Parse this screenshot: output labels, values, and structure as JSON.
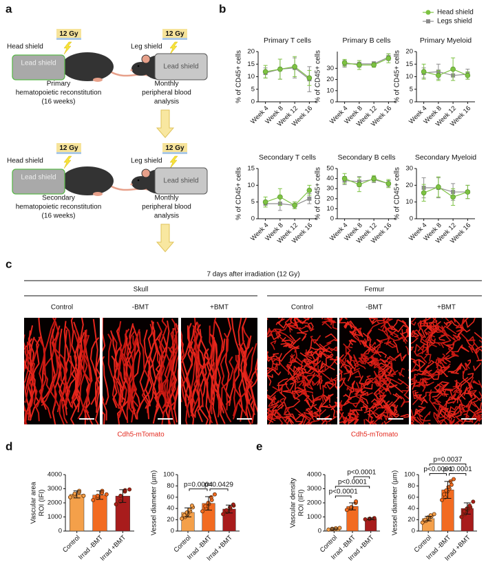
{
  "panel_labels": [
    "a",
    "b",
    "c",
    "d",
    "e"
  ],
  "panel_a": {
    "rows": [
      {
        "dose": "12 Gy",
        "shield": "Head shield",
        "lead": "Lead shield",
        "caption": [
          "Primary",
          "hematopoietic reconstitution",
          "(16 weeks)"
        ],
        "right_dose": "12 Gy",
        "right_shield": "Leg shield",
        "right_lead": "Lead shield",
        "right_caption": [
          "Monthly",
          "peripheral blood",
          "analysis"
        ]
      },
      {
        "dose": "12 Gy",
        "shield": "Head shield",
        "lead": "Lead shield",
        "caption": [
          "Secondary",
          "hematopoietic reconstitution",
          "(16 weeks)"
        ],
        "right_dose": "12 Gy",
        "right_shield": "Leg shield",
        "right_lead": "Lead shield",
        "right_caption": [
          "Monthly",
          "peripheral blood",
          "analysis"
        ]
      }
    ]
  },
  "panel_c": {
    "title": "7 days after irradiation (12 Gy)",
    "groups": [
      {
        "name": "Skull",
        "conditions": [
          "Control",
          "-BMT",
          "+BMT"
        ]
      },
      {
        "name": "Femur",
        "conditions": [
          "Control",
          "-BMT",
          "+BMT"
        ]
      }
    ],
    "stain": [
      "Cdh5-mTomato",
      "Cdh5-mTomato"
    ]
  },
  "chart_data": [
    {
      "type": "line",
      "title": "Primary T cells",
      "ylabel": "% of CD45+ cells",
      "categories": [
        "Week 4",
        "Week 8",
        "Week 12",
        "Week 16"
      ],
      "series": [
        {
          "name": "Head shield",
          "color": "#7dc242",
          "marker": "circle",
          "values": [
            12,
            13,
            14,
            9.5
          ],
          "errors": [
            2.5,
            4,
            4,
            3
          ]
        },
        {
          "name": "Legs shield",
          "color": "#8c8c8c",
          "marker": "square",
          "values": [
            11.5,
            13,
            13.5,
            9
          ],
          "errors": [
            2,
            4,
            4,
            5
          ]
        }
      ],
      "ylim": [
        0,
        20
      ],
      "yticks": [
        0,
        5,
        10,
        15,
        20
      ]
    },
    {
      "type": "line",
      "title": "Primary B cells",
      "ylabel": "% of CD45+ cells",
      "categories": [
        "Week 4",
        "Week 8",
        "Week 12",
        "Week 16"
      ],
      "series": [
        {
          "name": "Head shield",
          "color": "#7dc242",
          "marker": "circle",
          "values": [
            35,
            33,
            33,
            39
          ],
          "errors": [
            3,
            4,
            2,
            4
          ]
        },
        {
          "name": "Legs shield",
          "color": "#8c8c8c",
          "marker": "square",
          "values": [
            34,
            34,
            34,
            40
          ],
          "errors": [
            3,
            3,
            2,
            3
          ]
        }
      ],
      "ylim": [
        0,
        45
      ],
      "yticks": [
        0,
        10,
        20,
        30
      ]
    },
    {
      "type": "line",
      "title": "Primary Myeloid",
      "ylabel": "% of CD45+ cells",
      "categories": [
        "Week 4",
        "Week 8",
        "Week 12",
        "Week 16"
      ],
      "series": [
        {
          "name": "Head shield",
          "color": "#7dc242",
          "marker": "circle",
          "values": [
            12,
            10.5,
            13,
            10.5
          ],
          "errors": [
            3,
            2,
            4.5,
            1.5
          ]
        },
        {
          "name": "Legs shield",
          "color": "#8c8c8c",
          "marker": "square",
          "values": [
            11.5,
            12,
            10.5,
            11
          ],
          "errors": [
            2,
            3,
            2,
            2
          ]
        }
      ],
      "ylim": [
        0,
        20
      ],
      "yticks": [
        0,
        5,
        10,
        15,
        20
      ],
      "legend": "top right"
    },
    {
      "type": "line",
      "title": "Secondary T cells",
      "ylabel": "% of CD45+ cells",
      "categories": [
        "Week 4",
        "Week 8",
        "Week 12",
        "Week 16"
      ],
      "series": [
        {
          "name": "Head shield",
          "color": "#7dc242",
          "marker": "circle",
          "values": [
            5,
            6.5,
            4,
            8.5
          ],
          "errors": [
            1.5,
            2.5,
            1,
            1.5
          ]
        },
        {
          "name": "Legs shield",
          "color": "#8c8c8c",
          "marker": "square",
          "values": [
            4.5,
            4.5,
            4,
            6
          ],
          "errors": [
            1,
            2,
            1,
            1.5
          ]
        }
      ],
      "ylim": [
        0,
        15
      ],
      "yticks": [
        0,
        5,
        10,
        15
      ]
    },
    {
      "type": "line",
      "title": "Secondary B cells",
      "ylabel": "% of CD45+ cells",
      "categories": [
        "Week 4",
        "Week 8",
        "Week 12",
        "Week 16"
      ],
      "series": [
        {
          "name": "Head shield",
          "color": "#7dc242",
          "marker": "circle",
          "values": [
            40,
            34,
            40,
            35
          ],
          "errors": [
            5,
            7,
            3,
            4
          ]
        },
        {
          "name": "Legs shield",
          "color": "#8c8c8c",
          "marker": "square",
          "values": [
            38,
            37,
            39,
            35
          ],
          "errors": [
            4,
            5,
            3,
            3
          ]
        }
      ],
      "ylim": [
        0,
        50
      ],
      "yticks": [
        0,
        10,
        20,
        30,
        40,
        50
      ]
    },
    {
      "type": "line",
      "title": "Secondary Myeloid",
      "ylabel": "% of CD45+ cells",
      "categories": [
        "Week 4",
        "Week 8",
        "Week 12",
        "Week 16"
      ],
      "series": [
        {
          "name": "Head shield",
          "color": "#7dc242",
          "marker": "circle",
          "values": [
            15.5,
            19,
            13,
            16
          ],
          "errors": [
            5,
            6,
            5,
            4
          ]
        },
        {
          "name": "Legs shield",
          "color": "#8c8c8c",
          "marker": "square",
          "values": [
            18.5,
            18.5,
            16,
            16
          ],
          "errors": [
            6,
            6,
            5,
            4
          ]
        }
      ],
      "ylim": [
        0,
        30
      ],
      "yticks": [
        0,
        10,
        20,
        30
      ]
    },
    {
      "type": "bar",
      "ylabel": [
        "Vascular area",
        "ROI (IFI)"
      ],
      "categories": [
        "Control",
        "Irrad -BMT",
        "Irrad +BMT"
      ],
      "colors": [
        "#f4a04a",
        "#f26b21",
        "#a81c1c"
      ],
      "values": [
        2600,
        2550,
        2480
      ],
      "errors": [
        250,
        300,
        450
      ],
      "points": [
        [
          2400,
          2550,
          2650,
          2750,
          2850,
          2500
        ],
        [
          2200,
          2350,
          2500,
          2700,
          2850,
          2600
        ],
        [
          1900,
          2100,
          2500,
          2800,
          2900,
          2950
        ]
      ],
      "ylim": [
        0,
        4000
      ],
      "yticks": [
        0,
        1000,
        2000,
        3000,
        4000
      ],
      "comparisons": []
    },
    {
      "type": "bar",
      "ylabel": "Vessel diameter (µm)",
      "categories": [
        "Control",
        "Irrad -BMT",
        "Irrad +BMT"
      ],
      "colors": [
        "#f4a04a",
        "#f26b21",
        "#a81c1c"
      ],
      "values": [
        33,
        49,
        39
      ],
      "errors": [
        8,
        12,
        7
      ],
      "points": [
        [
          22,
          25,
          28,
          30,
          33,
          35,
          38,
          42,
          45
        ],
        [
          35,
          40,
          44,
          48,
          50,
          55,
          60,
          65
        ],
        [
          30,
          34,
          37,
          40,
          42,
          45,
          47
        ]
      ],
      "ylim": [
        0,
        100
      ],
      "yticks": [
        0,
        20,
        40,
        60,
        80,
        100
      ],
      "comparisons": [
        {
          "label": "p=0.0004",
          "groups": [
            "Control",
            "Irrad -BMT"
          ]
        },
        {
          "label": "p=0.0429",
          "groups": [
            "Irrad -BMT",
            "Irrad +BMT"
          ]
        }
      ]
    },
    {
      "type": "bar",
      "ylabel": [
        "Vascular density",
        "ROI (IFI)"
      ],
      "categories": [
        "Control",
        "Irrad -BMT",
        "Irrad +BMT"
      ],
      "colors": [
        "#f4a04a",
        "#f26b21",
        "#a81c1c"
      ],
      "values": [
        150,
        1750,
        870
      ],
      "errors": [
        50,
        250,
        60
      ],
      "points": [
        [
          100,
          130,
          160,
          180,
          200,
          220
        ],
        [
          1500,
          1600,
          1700,
          2000,
          2100
        ],
        [
          830,
          860,
          880,
          900,
          920
        ]
      ],
      "ylim": [
        0,
        4000
      ],
      "yticks": [
        0,
        1000,
        2000,
        3000,
        4000
      ],
      "comparisons": [
        {
          "label": "p<0.0001",
          "groups": [
            "Control",
            "Irrad -BMT"
          ]
        },
        {
          "label": "p<0.0001",
          "groups": [
            "Control",
            "Irrad +BMT"
          ]
        },
        {
          "label": "p<0.0001",
          "groups": [
            "Irrad -BMT",
            "Irrad +BMT"
          ]
        }
      ]
    },
    {
      "type": "bar",
      "ylabel": "Vessel diameter (µm)",
      "categories": [
        "Control",
        "Irrad -BMT",
        "Irrad +BMT"
      ],
      "colors": [
        "#f4a04a",
        "#f26b21",
        "#a81c1c"
      ],
      "values": [
        22,
        73,
        40
      ],
      "errors": [
        4,
        15,
        10
      ],
      "points": [
        [
          15,
          18,
          20,
          22,
          24,
          26,
          28,
          30
        ],
        [
          55,
          60,
          65,
          70,
          72,
          75,
          78,
          82,
          88,
          92
        ],
        [
          25,
          30,
          35,
          38,
          40,
          42,
          45,
          52
        ]
      ],
      "ylim": [
        0,
        100
      ],
      "yticks": [
        0,
        20,
        40,
        60,
        80,
        100
      ],
      "comparisons": [
        {
          "label": "p<0.0001",
          "groups": [
            "Control",
            "Irrad -BMT"
          ]
        },
        {
          "label": "p<0.0001",
          "groups": [
            "Irrad -BMT",
            "Irrad +BMT"
          ]
        },
        {
          "label": "p=0.0037",
          "groups": [
            "Control",
            "Irrad +BMT"
          ]
        }
      ]
    }
  ]
}
